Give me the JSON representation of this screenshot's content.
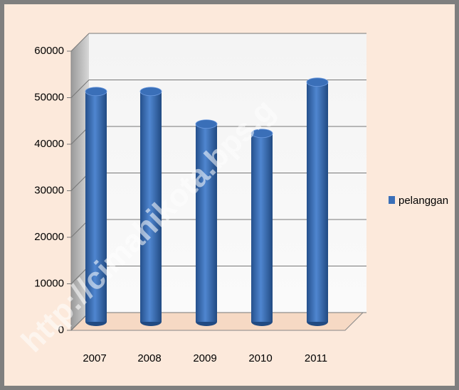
{
  "chart_data": {
    "type": "bar",
    "categories": [
      "2007",
      "2008",
      "2009",
      "2010",
      "2011"
    ],
    "series": [
      {
        "name": "pelanggan",
        "color": "#3a6fb8",
        "values": [
          49500,
          49500,
          42500,
          40500,
          51500
        ]
      }
    ],
    "ylim": [
      0,
      60000
    ],
    "yticks": [
      0,
      10000,
      20000,
      30000,
      40000,
      50000,
      60000
    ],
    "grid": true,
    "legend": "right",
    "watermark": "http://cimahikota.bps.g"
  }
}
